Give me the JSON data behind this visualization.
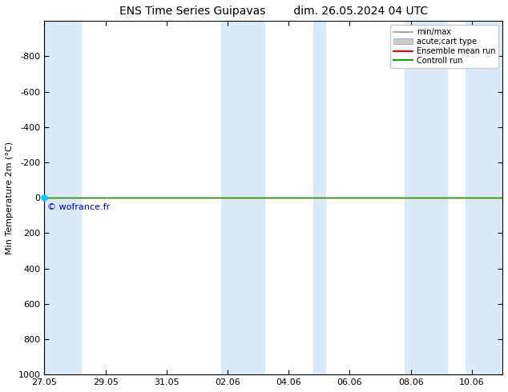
{
  "title_left": "ENS Time Series Guipavas",
  "title_right": "dim. 26.05.2024 04 UTC",
  "ylabel": "Min Temperature 2m (°C)",
  "ylim_bottom": 1000,
  "ylim_top": -1000,
  "yticks": [
    -800,
    -600,
    -400,
    -200,
    0,
    200,
    400,
    600,
    800,
    1000
  ],
  "xtick_labels": [
    "27.05",
    "29.05",
    "31.05",
    "02.06",
    "04.06",
    "06.06",
    "08.06",
    "10.06"
  ],
  "xtick_positions": [
    0,
    2,
    4,
    6,
    8,
    10,
    12,
    14
  ],
  "xlim": [
    0,
    15
  ],
  "shaded_ranges": [
    [
      0,
      1.2
    ],
    [
      5.8,
      7.2
    ],
    [
      8.8,
      9.2
    ],
    [
      11.8,
      13.2
    ],
    [
      13.8,
      15
    ]
  ],
  "shaded_color": "#daeaf7",
  "green_line_color": "#00aa00",
  "red_line_color": "#ff0000",
  "watermark": "© wofrance.fr",
  "watermark_color": "#0000cc",
  "watermark_circle_color": "#00ccff",
  "background_color": "#ffffff",
  "legend_entries": [
    "min/max",
    "acute;cart type",
    "Ensemble mean run",
    "Controll run"
  ],
  "legend_line_colors": [
    "#aaaaaa",
    "#cccccc",
    "#ff0000",
    "#00aa00"
  ],
  "title_fontsize": 10,
  "axis_fontsize": 8,
  "tick_fontsize": 8,
  "legend_fontsize": 7
}
